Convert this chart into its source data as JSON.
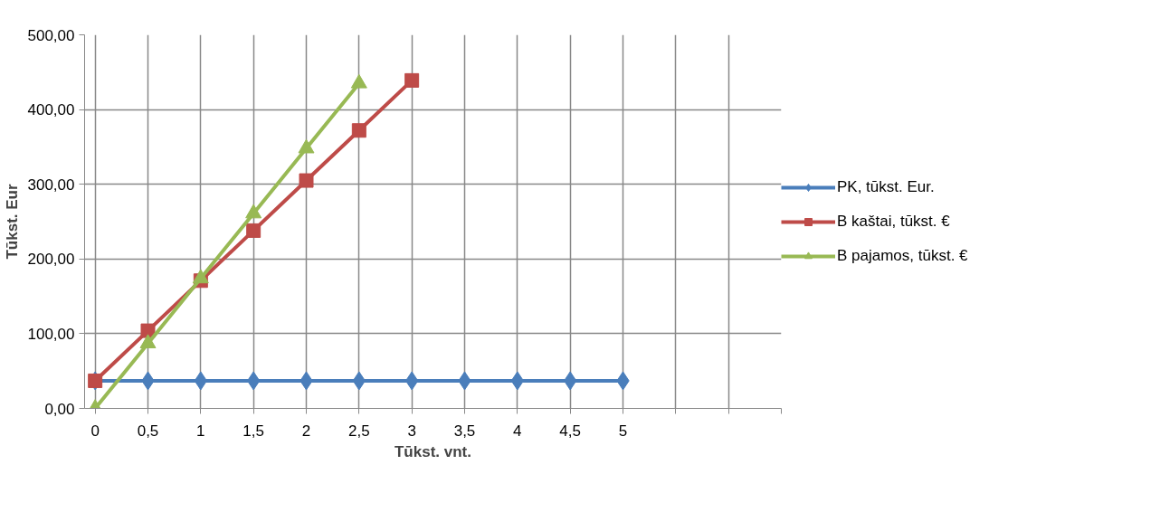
{
  "chart_data": {
    "type": "line",
    "xlabel": "Tūkst. vnt.",
    "ylabel": "Tūkst. Eur",
    "categories": [
      "0",
      "0,5",
      "1",
      "1,5",
      "2",
      "2,5",
      "3",
      "3,5",
      "4",
      "4,5",
      "5",
      null,
      null,
      null
    ],
    "series": [
      {
        "name": "PK, tūkst. Eur.",
        "color": "#4a7ebb",
        "marker": "diamond",
        "values": [
          37,
          37,
          37,
          37,
          37,
          37,
          37,
          37,
          37,
          37,
          37,
          null,
          null,
          null
        ]
      },
      {
        "name": "B kaštai, tūkst. €",
        "color": "#be4b48",
        "marker": "square",
        "values": [
          37,
          104,
          171,
          238,
          305,
          372,
          439,
          null,
          null,
          null,
          null,
          null,
          null,
          null
        ]
      },
      {
        "name": "B pajamos, tūkst. €",
        "color": "#98b954",
        "marker": "triangle",
        "values": [
          0,
          87,
          174,
          261,
          348,
          435,
          null,
          null,
          null,
          null,
          null,
          null,
          null,
          null
        ]
      }
    ],
    "ylim": [
      0,
      500
    ],
    "yticks": [
      {
        "value": 0,
        "label": "0,00"
      },
      {
        "value": 100,
        "label": "100,00"
      },
      {
        "value": 200,
        "label": "200,00"
      },
      {
        "value": 300,
        "label": "300,00"
      },
      {
        "value": 400,
        "label": "400,00"
      },
      {
        "value": 500,
        "label": "500,00"
      }
    ],
    "grid": true,
    "legend": "right",
    "line_style": "solid"
  }
}
